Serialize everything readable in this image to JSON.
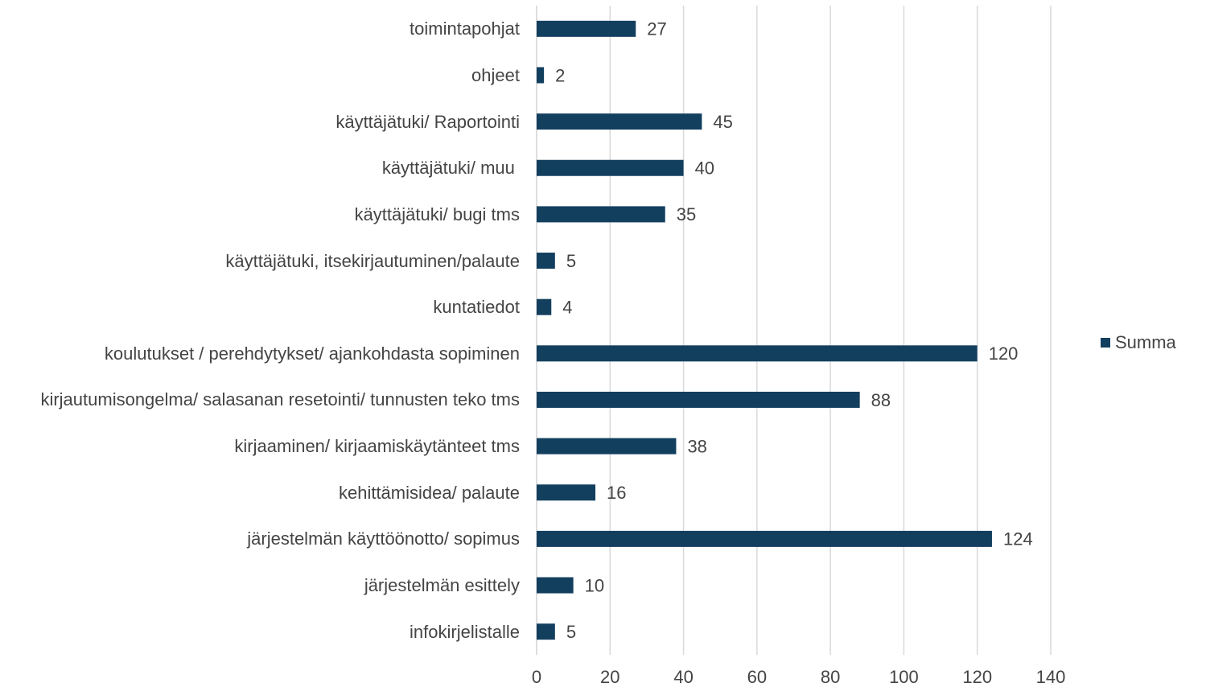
{
  "chart_data": {
    "type": "barh",
    "categories": [
      "toimintapohjat",
      "ohjeet",
      "käyttäjätuki/ Raportointi",
      "käyttäjätuki/ muu ",
      "käyttäjätuki/ bugi tms",
      "käyttäjätuki, itsekirjautuminen/palaute",
      "kuntatiedot",
      "koulutukset / perehdytykset/ ajankohdasta sopiminen",
      "kirjautumisongelma/ salasanan resetointi/ tunnusten teko tms",
      "kirjaaminen/ kirjaamiskäytänteet tms",
      "kehittämisidea/ palaute",
      "järjestelmän käyttöönotto/ sopimus",
      "järjestelmän esittely",
      "infokirjelistalle"
    ],
    "series": [
      {
        "name": "Summa",
        "color": "#133f5f",
        "values": [
          27,
          2,
          45,
          40,
          35,
          5,
          4,
          120,
          88,
          38,
          16,
          124,
          10,
          5
        ]
      }
    ],
    "xlim": [
      0,
      140
    ],
    "xticks": [
      0,
      20,
      40,
      60,
      80,
      100,
      120,
      140
    ],
    "grid": true,
    "legend": "right"
  }
}
